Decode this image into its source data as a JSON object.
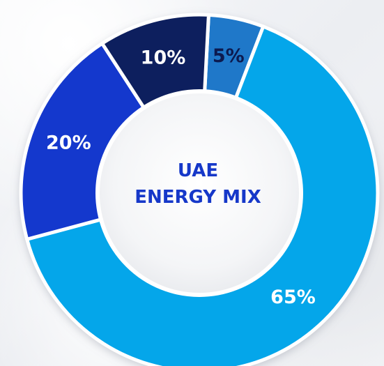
{
  "chart_data": {
    "type": "pie",
    "title": "",
    "center_label": [
      "UAE",
      "ENERGY MIX"
    ],
    "slices": [
      {
        "label": "5%",
        "value": 5,
        "color": "#1f78c9",
        "label_color": "#0c1a4f"
      },
      {
        "label": "65%",
        "value": 65,
        "color": "#04a6ea",
        "label_color": "#ffffff"
      },
      {
        "label": "20%",
        "value": 20,
        "color": "#1438cd",
        "label_color": "#ffffff"
      },
      {
        "label": "10%",
        "value": 10,
        "color": "#0d1f5e",
        "label_color": "#ffffff"
      }
    ],
    "start_angle_deg": 3,
    "legend": "none",
    "grid": false
  }
}
